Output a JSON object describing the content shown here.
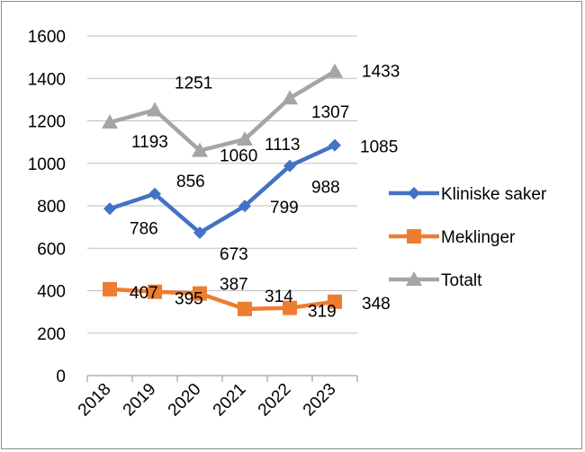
{
  "chart_data": {
    "type": "line",
    "categories": [
      "2018",
      "2019",
      "2020",
      "2021",
      "2022",
      "2023"
    ],
    "series": [
      {
        "name": "Kliniske saker",
        "values": [
          786,
          856,
          673,
          799,
          988,
          1085
        ],
        "color": "#4472C4",
        "marker": "diamond",
        "labels": [
          "786",
          "856",
          "673",
          "799",
          "988",
          "1085"
        ]
      },
      {
        "name": "Meklinger",
        "values": [
          407,
          395,
          387,
          314,
          319,
          348
        ],
        "color": "#ED7D31",
        "marker": "square",
        "labels": [
          "407",
          "395",
          "387",
          "314",
          "319",
          "348"
        ]
      },
      {
        "name": "Totalt",
        "values": [
          1193,
          1251,
          1060,
          1113,
          1307,
          1433
        ],
        "color": "#A5A5A5",
        "marker": "triangle",
        "labels": [
          "1193",
          "1251",
          "1060",
          "1113",
          "1307",
          "1433"
        ]
      }
    ],
    "ylim": [
      0,
      1600
    ],
    "yticks": [
      "0",
      "200",
      "400",
      "600",
      "800",
      "1000",
      "1200",
      "1400",
      "1600"
    ],
    "grid": true,
    "legend": "right"
  }
}
